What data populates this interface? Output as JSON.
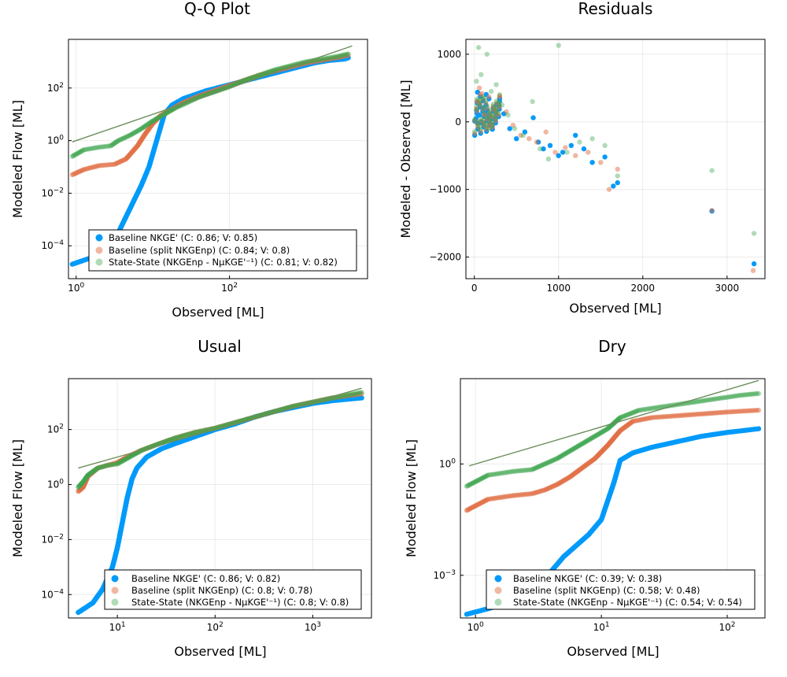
{
  "colors": {
    "baseline_nkge": "#009AFA",
    "baseline_split": "#E26F46",
    "state_state": "#3DA44D",
    "one_to_one": "#6B8E5A"
  },
  "chart_data": [
    {
      "id": "qq",
      "type": "scatter",
      "title": "Q-Q Plot",
      "xlabel": "Observed [ML]",
      "ylabel": "Modeled Flow [ML]",
      "xscale": "log10",
      "yscale": "log10",
      "xlim_log10": [
        -0.1,
        3.8
      ],
      "ylim_log10": [
        -5.25,
        3.85
      ],
      "xticks": [
        {
          "log10": 0,
          "label": "10^0"
        },
        {
          "log10": 2,
          "label": "10^2"
        }
      ],
      "yticks": [
        {
          "log10": -4,
          "label": "10^-4"
        },
        {
          "log10": -2,
          "label": "10^-2"
        },
        {
          "log10": 0,
          "label": "10^0"
        },
        {
          "log10": 2,
          "label": "10^2"
        }
      ],
      "grid": true,
      "legend_position": "bottom-right",
      "one_to_one_line": [
        [
          -0.05,
          -0.05
        ],
        [
          3.6,
          3.6
        ]
      ],
      "series": [
        {
          "name": "Baseline NKGE' (C: 0.86; V: 0.85)",
          "color_key": "baseline_nkge",
          "opacity": 1.0,
          "x_log10": [
            -0.05,
            0.2,
            0.4,
            0.55,
            0.65,
            0.75,
            0.85,
            0.95,
            1.0,
            1.05,
            1.1,
            1.15,
            1.25,
            1.4,
            1.55,
            1.7,
            1.9,
            2.1,
            2.3,
            2.5,
            2.7,
            2.9,
            3.1,
            3.3,
            3.5,
            3.55
          ],
          "y_log10": [
            -4.7,
            -4.45,
            -4.1,
            -3.5,
            -2.9,
            -2.3,
            -1.7,
            -1.0,
            -0.5,
            0.0,
            0.5,
            1.0,
            1.35,
            1.6,
            1.75,
            1.9,
            2.05,
            2.2,
            2.35,
            2.5,
            2.65,
            2.8,
            2.95,
            3.05,
            3.1,
            3.15
          ]
        },
        {
          "name": "Baseline (split NKGEnp) (C: 0.84; V: 0.8)",
          "color_key": "baseline_split",
          "opacity": 0.5,
          "x_log10": [
            -0.05,
            0.1,
            0.3,
            0.5,
            0.65,
            0.8,
            0.9,
            1.0,
            1.1,
            1.25,
            1.4,
            1.6,
            1.8,
            2.0,
            2.2,
            2.4,
            2.6,
            2.8,
            3.0,
            3.2,
            3.4,
            3.55
          ],
          "y_log10": [
            -1.3,
            -1.1,
            -0.95,
            -0.9,
            -0.7,
            -0.2,
            0.25,
            0.65,
            0.95,
            1.2,
            1.45,
            1.7,
            1.9,
            2.1,
            2.3,
            2.5,
            2.65,
            2.8,
            2.95,
            3.05,
            3.15,
            3.25
          ]
        },
        {
          "name": "State-State (NKGEnp - NμKGE'⁻¹) (C: 0.81; V: 0.82)",
          "color_key": "state_state",
          "opacity": 0.4,
          "x_log10": [
            -0.05,
            0.1,
            0.3,
            0.45,
            0.55,
            0.7,
            0.85,
            1.0,
            1.15,
            1.3,
            1.45,
            1.6,
            1.8,
            2.0,
            2.2,
            2.4,
            2.6,
            2.8,
            3.0,
            3.2,
            3.4,
            3.55
          ],
          "y_log10": [
            -0.6,
            -0.35,
            -0.25,
            -0.2,
            0.0,
            0.2,
            0.45,
            0.75,
            1.0,
            1.25,
            1.45,
            1.65,
            1.85,
            2.05,
            2.3,
            2.5,
            2.7,
            2.85,
            3.0,
            3.1,
            3.2,
            3.3
          ]
        }
      ]
    },
    {
      "id": "residuals",
      "type": "scatter",
      "title": "Residuals",
      "xlabel": "Observed [ML]",
      "ylabel": "Modeled - Observed [ML]",
      "xscale": "linear",
      "yscale": "linear",
      "xlim": [
        -100,
        3450
      ],
      "ylim": [
        -2320,
        1220
      ],
      "xticks": [
        {
          "v": 0,
          "label": "0"
        },
        {
          "v": 1000,
          "label": "1000"
        },
        {
          "v": 2000,
          "label": "2000"
        },
        {
          "v": 3000,
          "label": "3000"
        }
      ],
      "yticks": [
        {
          "v": -2000,
          "label": "−2000"
        },
        {
          "v": -1000,
          "label": "−1000"
        },
        {
          "v": 0,
          "label": "0"
        },
        {
          "v": 1000,
          "label": "1000"
        }
      ],
      "grid": true,
      "series": [
        {
          "name": "Baseline NKGE'",
          "color_key": "baseline_nkge",
          "opacity": 1.0,
          "x": [
            5,
            20,
            40,
            60,
            80,
            100,
            130,
            160,
            200,
            250,
            300,
            350,
            420,
            500,
            600,
            700,
            760,
            820,
            900,
            1000,
            1050,
            1150,
            1200,
            1300,
            1400,
            1550,
            1650,
            1700,
            2820,
            3320
          ],
          "y": [
            10,
            50,
            -20,
            100,
            0,
            200,
            130,
            80,
            -40,
            160,
            300,
            120,
            -100,
            -250,
            -150,
            60,
            -300,
            -400,
            -350,
            -500,
            -450,
            -350,
            -200,
            -400,
            -600,
            -520,
            -950,
            -900,
            -1320,
            -2100
          ]
        },
        {
          "name": "Baseline (split NKGEnp)",
          "color_key": "baseline_split",
          "opacity": 0.5,
          "x": [
            5,
            30,
            60,
            90,
            130,
            180,
            240,
            300,
            380,
            460,
            550,
            650,
            740,
            850,
            960,
            1080,
            1200,
            1350,
            1500,
            1600,
            1700,
            2820,
            3310
          ],
          "y": [
            20,
            300,
            500,
            420,
            100,
            -80,
            200,
            380,
            150,
            -50,
            -200,
            -250,
            -300,
            -150,
            -450,
            -380,
            -500,
            -450,
            -600,
            -1000,
            -700,
            -1310,
            -2200
          ]
        },
        {
          "name": "State-State (NKGEnp - NμKGE'⁻¹)",
          "color_key": "state_state",
          "opacity": 0.4,
          "x": [
            5,
            25,
            50,
            80,
            110,
            150,
            200,
            260,
            330,
            400,
            480,
            580,
            690,
            780,
            880,
            1000,
            1100,
            1250,
            1400,
            1550,
            1700,
            2820,
            3320
          ],
          "y": [
            30,
            600,
            1100,
            700,
            350,
            1000,
            450,
            550,
            250,
            100,
            -100,
            -200,
            300,
            -400,
            -550,
            1130,
            -450,
            -300,
            -250,
            -350,
            -800,
            -720,
            -1650
          ]
        }
      ]
    },
    {
      "id": "usual",
      "type": "scatter",
      "title": "Usual",
      "xlabel": "Observed [ML]",
      "ylabel": "Modeled Flow [ML]",
      "xscale": "log10",
      "yscale": "log10",
      "xlim_log10": [
        0.5,
        3.6
      ],
      "ylim_log10": [
        -4.85,
        3.85
      ],
      "xticks": [
        {
          "log10": 1,
          "label": "10^1"
        },
        {
          "log10": 2,
          "label": "10^2"
        },
        {
          "log10": 3,
          "label": "10^3"
        }
      ],
      "yticks": [
        {
          "log10": -4,
          "label": "10^-4"
        },
        {
          "log10": -2,
          "label": "10^-2"
        },
        {
          "log10": 0,
          "label": "10^0"
        },
        {
          "log10": 2,
          "label": "10^2"
        }
      ],
      "grid": true,
      "legend_position": "bottom-right",
      "one_to_one_line": [
        [
          0.6,
          0.6
        ],
        [
          3.5,
          3.5
        ]
      ],
      "series": [
        {
          "name": "Baseline NKGE' (C: 0.86; V: 0.82)",
          "color_key": "baseline_nkge",
          "opacity": 1.0,
          "x_log10": [
            0.6,
            0.75,
            0.85,
            0.95,
            1.0,
            1.05,
            1.1,
            1.15,
            1.2,
            1.3,
            1.45,
            1.6,
            1.8,
            2.0,
            2.2,
            2.4,
            2.6,
            2.8,
            3.0,
            3.2,
            3.5
          ],
          "y_log10": [
            -4.65,
            -4.3,
            -3.8,
            -3.0,
            -2.3,
            -1.4,
            -0.5,
            0.2,
            0.6,
            1.0,
            1.3,
            1.5,
            1.75,
            2.0,
            2.2,
            2.45,
            2.65,
            2.8,
            2.95,
            3.05,
            3.15
          ]
        },
        {
          "name": "Baseline (split NKGEnp) (C: 0.8; V: 0.78)",
          "color_key": "baseline_split",
          "opacity": 0.5,
          "x_log10": [
            0.6,
            0.65,
            0.7,
            0.8,
            0.9,
            1.0,
            1.1,
            1.25,
            1.4,
            1.6,
            1.8,
            2.0,
            2.2,
            2.4,
            2.6,
            2.8,
            3.0,
            3.2,
            3.5
          ],
          "y_log10": [
            -0.25,
            -0.1,
            0.3,
            0.6,
            0.7,
            0.8,
            1.0,
            1.25,
            1.45,
            1.7,
            1.9,
            2.05,
            2.25,
            2.45,
            2.65,
            2.85,
            3.0,
            3.15,
            3.3
          ]
        },
        {
          "name": "State-State (NKGEnp - NμKGE'⁻¹) (C: 0.8; V: 0.8)",
          "color_key": "state_state",
          "opacity": 0.4,
          "x_log10": [
            0.6,
            0.65,
            0.7,
            0.8,
            0.9,
            1.0,
            1.1,
            1.25,
            1.4,
            1.6,
            1.8,
            2.0,
            2.2,
            2.4,
            2.6,
            2.8,
            3.0,
            3.2,
            3.5
          ],
          "y_log10": [
            -0.1,
            0.1,
            0.35,
            0.6,
            0.7,
            0.75,
            0.95,
            1.25,
            1.45,
            1.7,
            1.9,
            2.05,
            2.25,
            2.45,
            2.65,
            2.85,
            3.0,
            3.15,
            3.35
          ]
        }
      ]
    },
    {
      "id": "dry",
      "type": "scatter",
      "title": "Dry",
      "xlabel": "Observed [ML]",
      "ylabel": "Modeled Flow [ML]",
      "xscale": "log10",
      "yscale": "log10",
      "xlim_log10": [
        -0.12,
        2.3
      ],
      "ylim_log10": [
        -4.15,
        2.3
      ],
      "xticks": [
        {
          "log10": 0,
          "label": "10^0"
        },
        {
          "log10": 1,
          "label": "10^1"
        },
        {
          "log10": 2,
          "label": "10^2"
        }
      ],
      "yticks": [
        {
          "log10": -3,
          "label": "10^-3"
        },
        {
          "log10": 0,
          "label": "10^0"
        }
      ],
      "grid": true,
      "legend_position": "bottom-right",
      "one_to_one_line": [
        [
          -0.05,
          -0.05
        ],
        [
          2.25,
          2.25
        ]
      ],
      "series": [
        {
          "name": "Baseline NKGE' (C: 0.39; V: 0.38)",
          "color_key": "baseline_nkge",
          "opacity": 1.0,
          "x_log10": [
            -0.07,
            0.1,
            0.25,
            0.4,
            0.5,
            0.6,
            0.7,
            0.8,
            0.9,
            1.0,
            1.05,
            1.1,
            1.15,
            1.25,
            1.4,
            1.6,
            1.8,
            2.0,
            2.25
          ],
          "y_log10": [
            -4.05,
            -3.9,
            -3.75,
            -3.5,
            -3.2,
            -2.9,
            -2.5,
            -2.2,
            -1.9,
            -1.5,
            -1.0,
            -0.5,
            0.1,
            0.3,
            0.45,
            0.6,
            0.75,
            0.85,
            0.95
          ]
        },
        {
          "name": "Baseline (split NKGEnp) (C: 0.58; V: 0.48)",
          "color_key": "baseline_split",
          "opacity": 0.5,
          "x_log10": [
            -0.07,
            0.1,
            0.3,
            0.45,
            0.55,
            0.65,
            0.75,
            0.85,
            0.95,
            1.05,
            1.15,
            1.25,
            1.4,
            1.6,
            1.8,
            2.0,
            2.25
          ],
          "y_log10": [
            -1.25,
            -0.95,
            -0.85,
            -0.8,
            -0.7,
            -0.55,
            -0.35,
            -0.1,
            0.15,
            0.5,
            0.9,
            1.15,
            1.25,
            1.3,
            1.35,
            1.4,
            1.45
          ]
        },
        {
          "name": "State-State (NKGEnp - NμKGE'⁻¹) (C: 0.54; V: 0.54)",
          "color_key": "state_state",
          "opacity": 0.4,
          "x_log10": [
            -0.07,
            0.1,
            0.3,
            0.45,
            0.55,
            0.65,
            0.75,
            0.85,
            0.95,
            1.05,
            1.15,
            1.3,
            1.5,
            1.7,
            1.9,
            2.1,
            2.25
          ],
          "y_log10": [
            -0.6,
            -0.3,
            -0.2,
            -0.15,
            0.0,
            0.15,
            0.35,
            0.55,
            0.75,
            0.95,
            1.25,
            1.45,
            1.55,
            1.65,
            1.75,
            1.85,
            1.9
          ]
        }
      ]
    }
  ]
}
